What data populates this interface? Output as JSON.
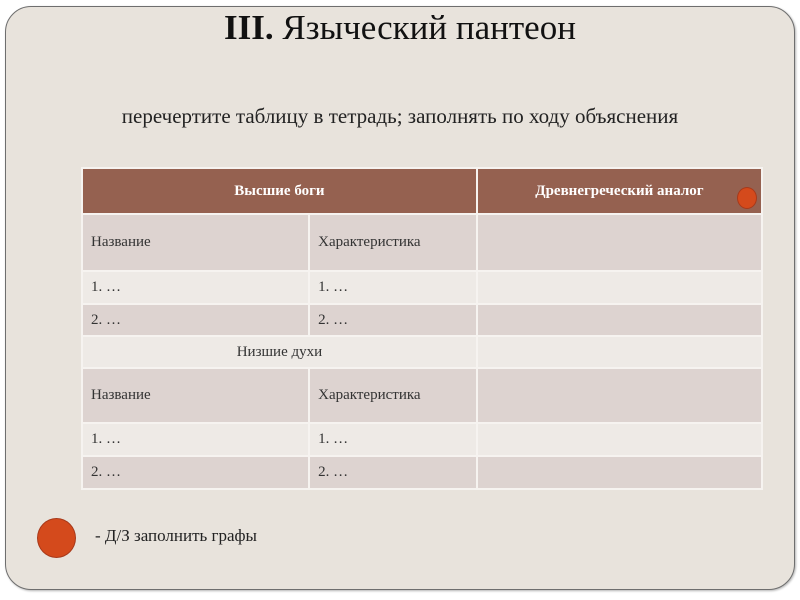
{
  "title": {
    "numeral": "III.",
    "text": " Языческий пантеон"
  },
  "subtitle": "перечертите таблицу в тетрадь; заполнять по ходу объяснения",
  "table": {
    "header": {
      "gods": "Высшие боги",
      "analog": "Древнегреческий аналог"
    },
    "section1": {
      "columns": [
        "Название",
        "Характеристика"
      ],
      "rows": [
        [
          "1. …",
          "1. …"
        ],
        [
          "2. …",
          "2. …"
        ]
      ]
    },
    "section2": {
      "label": "Низшие духи",
      "columns": [
        "Название",
        "Характеристика"
      ],
      "rows": [
        [
          "1. …",
          "1. …"
        ],
        [
          "2. …",
          "2. …"
        ]
      ]
    }
  },
  "homework": "- Д/З заполнить графы",
  "colors": {
    "header": "#956150",
    "bullet": "#d44a1c",
    "slide_bg": "#e8e3dc"
  }
}
